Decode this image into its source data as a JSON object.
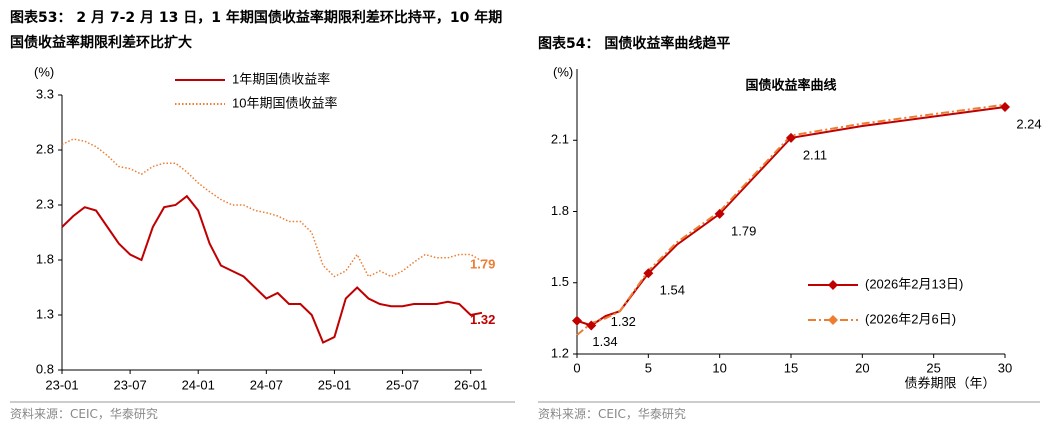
{
  "chart_data": [
    {
      "type": "line",
      "caption": "图表53：  2 月 7-2 月 13 日，1 年期国债收益率期限利差环比持平，10 年期国债收益率期限利差环比扩大",
      "y_label": "(%)",
      "source": "资料来源：CEIC，华泰研究",
      "categories": [
        "23-01",
        null,
        null,
        null,
        null,
        null,
        "23-07",
        null,
        null,
        null,
        null,
        null,
        "24-01",
        null,
        null,
        null,
        null,
        null,
        "24-07",
        null,
        null,
        null,
        null,
        null,
        "25-01",
        null,
        null,
        null,
        null,
        null,
        "25-07",
        null,
        null,
        null,
        null,
        null,
        "26-01",
        null
      ],
      "series": [
        {
          "name": "1年期国债收益率",
          "color": "#c00000",
          "style": "solid",
          "values": [
            2.1,
            2.2,
            2.28,
            2.25,
            2.1,
            1.95,
            1.85,
            1.8,
            2.1,
            2.28,
            2.3,
            2.38,
            2.25,
            1.95,
            1.75,
            1.7,
            1.65,
            1.55,
            1.45,
            1.5,
            1.4,
            1.4,
            1.3,
            1.05,
            1.1,
            1.45,
            1.55,
            1.45,
            1.4,
            1.38,
            1.38,
            1.4,
            1.4,
            1.4,
            1.42,
            1.4,
            1.3,
            1.32
          ]
        },
        {
          "name": "10年期国债收益率",
          "color": "#ed7d31",
          "style": "dotted",
          "values": [
            2.85,
            2.9,
            2.88,
            2.83,
            2.75,
            2.65,
            2.63,
            2.58,
            2.65,
            2.68,
            2.68,
            2.6,
            2.5,
            2.42,
            2.35,
            2.3,
            2.3,
            2.25,
            2.23,
            2.2,
            2.15,
            2.15,
            2.05,
            1.75,
            1.65,
            1.7,
            1.85,
            1.65,
            1.7,
            1.65,
            1.7,
            1.78,
            1.85,
            1.82,
            1.82,
            1.85,
            1.85,
            1.79
          ]
        }
      ],
      "ylim": [
        0.8,
        3.3
      ],
      "yticks": [
        0.8,
        1.3,
        1.8,
        2.3,
        2.8,
        3.3
      ]
    },
    {
      "type": "line",
      "caption": "图表54：  国债收益率曲线趋平",
      "title": "国债收益率曲线",
      "y_label": "(%)",
      "x_label": "债券期限（年）",
      "source": "资料来源：CEIC，华泰研究",
      "x": [
        0,
        1,
        2,
        3,
        5,
        7,
        10,
        15,
        20,
        30
      ],
      "series": [
        {
          "name": "(2026年2月13日)",
          "color": "#c00000",
          "style": "solid",
          "values": [
            1.34,
            1.32,
            1.36,
            1.38,
            1.54,
            1.66,
            1.79,
            2.11,
            2.16,
            2.24
          ],
          "value_labels": [
            "1.34",
            "1.32",
            null,
            null,
            "1.54",
            null,
            "1.79",
            "2.11",
            null,
            "2.24"
          ]
        },
        {
          "name": "(2026年2月6日)",
          "color": "#ed7d31",
          "style": "dashdot",
          "values": [
            1.28,
            1.33,
            1.35,
            1.38,
            1.55,
            1.67,
            1.8,
            2.12,
            2.17,
            2.25
          ]
        }
      ],
      "xlim": [
        0,
        30
      ],
      "xticks": [
        0,
        5,
        10,
        15,
        20,
        25,
        30
      ],
      "ylim": [
        1.2,
        2.4
      ],
      "yticks": [
        1.2,
        1.5,
        1.8,
        2.1
      ]
    }
  ]
}
